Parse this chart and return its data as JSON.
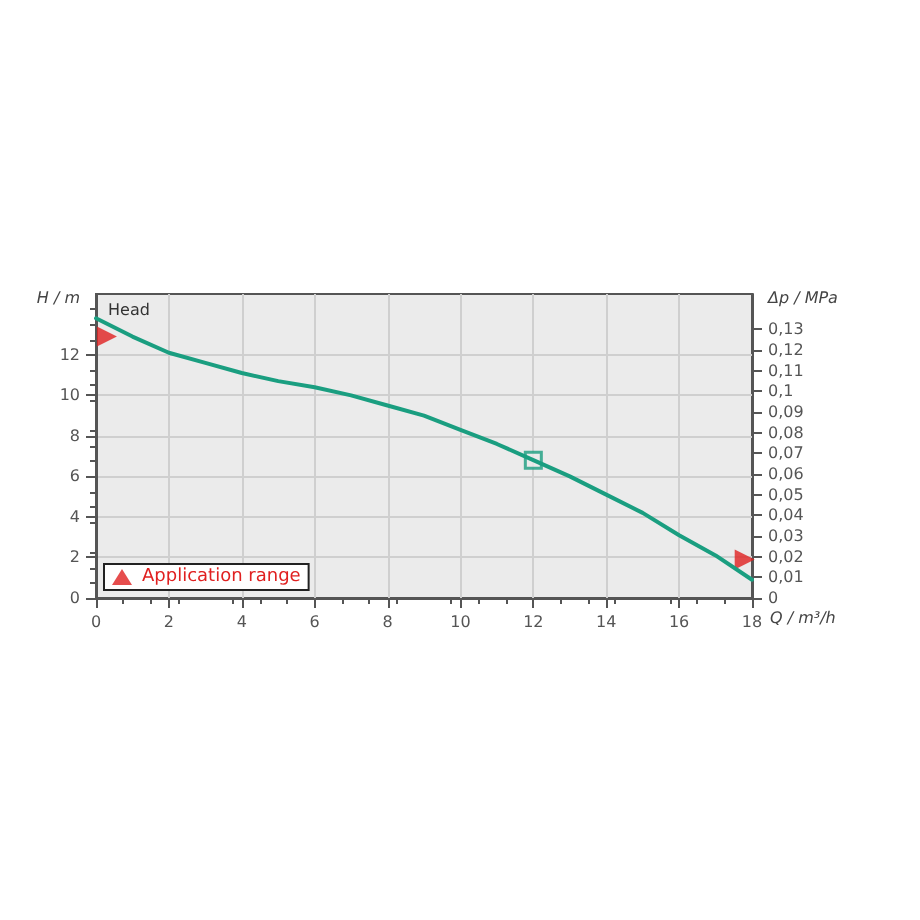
{
  "chart_data": {
    "type": "line",
    "xlabel": "Q / m³/h",
    "ylabel": "H / m",
    "y2label": "Δp / MPa",
    "annotations": [
      "Head"
    ],
    "x": [
      0,
      1,
      2,
      3,
      4,
      5,
      6,
      7,
      8,
      9,
      10,
      11,
      12,
      13,
      14,
      15,
      16,
      17,
      18
    ],
    "series": [
      {
        "color": "#1a9e80",
        "marker": "none",
        "values": [
          13.8,
          12.9,
          12.1,
          11.6,
          11.1,
          10.7,
          10.4,
          10,
          9.5,
          9,
          8.3,
          7.6,
          6.8,
          6.0,
          5.1,
          4.2,
          3.1,
          2.1,
          0.9
        ]
      },
      {
        "type": "scatter",
        "color": "#1a9e80",
        "marker": "square",
        "x": [
          12
        ],
        "values": [
          6.8
        ]
      },
      {
        "type": "scatter",
        "name": "Application range",
        "color": "#e02020",
        "marker": "triangle",
        "x": [
          0.3,
          17.8
        ],
        "values": [
          12.9,
          1.9
        ]
      }
    ],
    "xlim": [
      0,
      18
    ],
    "xticks": [
      0,
      2,
      4,
      6,
      8,
      10,
      12,
      14,
      16,
      18
    ],
    "ylim": [
      0,
      15
    ],
    "yticks": [
      0,
      2,
      4,
      6,
      8,
      10,
      12
    ],
    "y2lim": [
      0,
      0.147
    ],
    "y2ticks": [
      0,
      {
        "value": 0.01,
        "label": "0,01"
      },
      {
        "value": 0.02,
        "label": "0,02"
      },
      {
        "value": 0.03,
        "label": "0,03"
      },
      {
        "value": 0.04,
        "label": "0,04"
      },
      {
        "value": 0.05,
        "label": "0,05"
      },
      {
        "value": 0.06,
        "label": "0,06"
      },
      {
        "value": 0.07,
        "label": "0,07"
      },
      {
        "value": 0.08,
        "label": "0,08"
      },
      {
        "value": 0.09,
        "label": "0,09"
      },
      {
        "value": 0.1,
        "label": "0,1"
      },
      {
        "value": 0.11,
        "label": "0,11"
      },
      {
        "value": 0.12,
        "label": "0,12"
      },
      {
        "value": 0.13,
        "label": "0,13"
      }
    ],
    "grid": true,
    "legend": "bottom left",
    "line_style": "solid"
  }
}
